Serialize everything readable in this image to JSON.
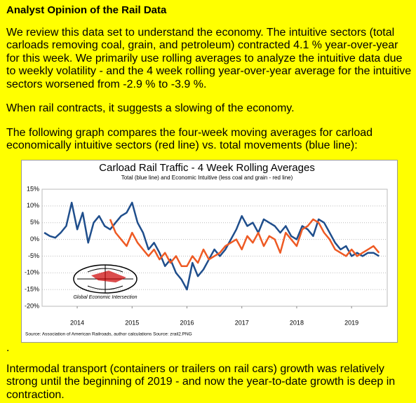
{
  "header": {
    "title": "Analyst Opinion of the Rail Data"
  },
  "paragraphs": [
    "We review this data set to understand the economy. The intuitive sectors (total carloads removing coal, grain, and petroleum) contracted 4.1 % year-over-year for this week. We primarily use rolling averages to analyze the intuitive data due to weekly volatility - and the 4 week rolling year-over-year average for the intuitive sectors worsened from -2.9 % to -3.9 %.",
    "When rail contracts, it suggests a slowing of the economy.",
    "The following graph compares the four-week moving averages for carload economically intuitive sectors (red line) vs. total movements (blue line):"
  ],
  "chart_data": {
    "type": "line",
    "title": "Carload Rail Traffic - 4 Week Rolling Averages",
    "subtitle": "Total (blue line) and Economic Intuitive (less coal and grain - red line)",
    "logo": "Global Economic Intersection",
    "source": "Source: Association of American Railroads, author calculations   Source: zrail2.PNG",
    "x": [
      2013.9,
      2014.0,
      2014.1,
      2014.2,
      2014.3,
      2014.4,
      2014.5,
      2014.6,
      2014.7,
      2014.8,
      2014.9,
      2015.0,
      2015.1,
      2015.2,
      2015.3,
      2015.4,
      2015.5,
      2015.6,
      2015.7,
      2015.8,
      2015.9,
      2016.0,
      2016.1,
      2016.2,
      2016.3,
      2016.4,
      2016.5,
      2016.6,
      2016.7,
      2016.8,
      2016.9,
      2017.0,
      2017.1,
      2017.2,
      2017.3,
      2017.4,
      2017.5,
      2017.6,
      2017.7,
      2017.8,
      2017.9,
      2018.0,
      2018.1,
      2018.2,
      2018.3,
      2018.4,
      2018.5,
      2018.6,
      2018.7,
      2018.8,
      2018.9,
      2019.0,
      2019.1,
      2019.2,
      2019.3,
      2019.4,
      2019.5,
      2019.6,
      2019.7,
      2019.8,
      2019.9,
      2020.0
    ],
    "series": [
      {
        "color": "#1f4e8c",
        "values": [
          2,
          1,
          0.5,
          2,
          4,
          11,
          3,
          8,
          -1,
          5,
          7,
          4,
          3,
          5,
          7,
          8,
          11,
          5,
          2,
          -3,
          -1,
          -4,
          -8,
          -6,
          -10,
          -12,
          -15,
          -7,
          -11,
          -9,
          -6,
          -3,
          -5,
          -3,
          0,
          3,
          7,
          4,
          5,
          2,
          6,
          5,
          4,
          2,
          4,
          1,
          0,
          4,
          3,
          1,
          6,
          5,
          2,
          -1,
          -3,
          -2,
          -5,
          -4,
          -5,
          -4,
          -4,
          -5
        ]
      },
      {
        "color": "#ee5a24",
        "values": [
          null,
          null,
          null,
          null,
          null,
          null,
          null,
          null,
          null,
          null,
          null,
          null,
          6,
          2,
          0,
          -2,
          2,
          -1,
          -3,
          -5,
          -3,
          -6,
          -4,
          -7,
          -5,
          -8,
          -8,
          -5,
          -7,
          -3,
          -6,
          -5,
          -4,
          -2,
          -1,
          0,
          -3,
          1,
          -1,
          2,
          -2,
          1,
          0,
          -4,
          2,
          0,
          -2,
          3,
          4,
          6,
          5,
          2,
          0,
          -3,
          -4,
          -5,
          -3,
          -5,
          -4,
          -3,
          -2,
          -4
        ]
      }
    ],
    "xlim": [
      2013.86,
      2020.15
    ],
    "xticks": [
      {
        "value": 2014.5,
        "label": "2014"
      },
      {
        "value": 2015.5,
        "label": "2015"
      },
      {
        "value": 2016.5,
        "label": "2016"
      },
      {
        "value": 2017.5,
        "label": "2017"
      },
      {
        "value": 2018.5,
        "label": "2018"
      },
      {
        "value": 2019.5,
        "label": "2019"
      }
    ],
    "ylim": [
      -20,
      15
    ],
    "yticks": [
      {
        "value": 15,
        "label": "15%"
      },
      {
        "value": 10,
        "label": "10%"
      },
      {
        "value": 5,
        "label": "5%"
      },
      {
        "value": 0,
        "label": "0%"
      },
      {
        "value": -5,
        "label": "-5%"
      },
      {
        "value": -10,
        "label": "-10%"
      },
      {
        "value": -15,
        "label": "-15%"
      },
      {
        "value": -20,
        "label": "-20%"
      }
    ],
    "grid": true
  },
  "separator": ".",
  "closing": "Intermodal transport (containers or trailers on rail cars) growth was relatively strong until the beginning of 2019 - and now the year-to-date growth is deep in contraction."
}
